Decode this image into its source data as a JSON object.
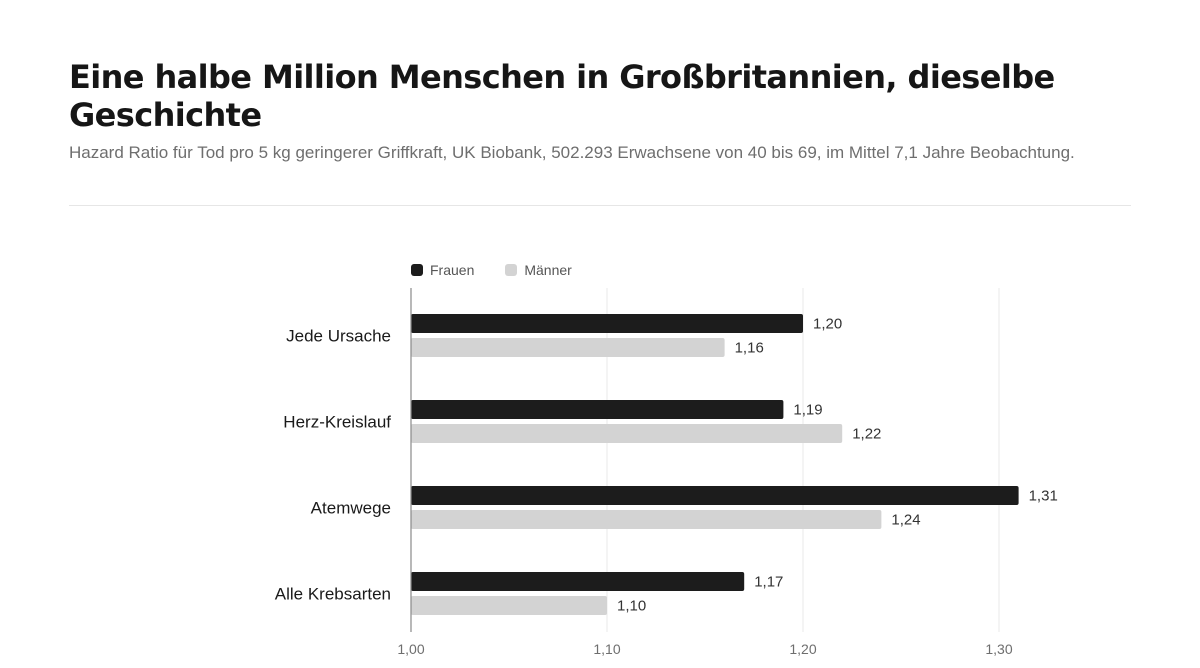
{
  "header": {
    "title": "Eine halbe Million Menschen in Großbritannien, dieselbe Geschichte",
    "subtitle": "Hazard Ratio für Tod pro 5 kg geringerer Griffkraft, UK Biobank, 502.293 Erwachsene von 40 bis 69, im Mittel 7,1 Jahre Beobachtung."
  },
  "chart_data": {
    "type": "bar",
    "orientation": "horizontal",
    "title": "Eine halbe Million Menschen in Großbritannien, dieselbe Geschichte",
    "subtitle": "Hazard Ratio für Tod pro 5 kg geringerer Griffkraft, UK Biobank, 502.293 Erwachsene von 40 bis 69, im Mittel 7,1 Jahre Beobachtung.",
    "xlabel": "",
    "ylabel": "",
    "categories": [
      "Jede Ursache",
      "Herz-Kreislauf",
      "Atemwege",
      "Alle Krebsarten"
    ],
    "series": [
      {
        "name": "Frauen",
        "color": "#1c1c1c",
        "values": [
          1.2,
          1.19,
          1.31,
          1.17
        ],
        "labels": [
          "1,20",
          "1,19",
          "1,31",
          "1,17"
        ]
      },
      {
        "name": "Männer",
        "color": "#d3d3d3",
        "values": [
          1.16,
          1.22,
          1.24,
          1.1
        ],
        "labels": [
          "1,16",
          "1,22",
          "1,24",
          "1,10"
        ]
      }
    ],
    "xlim": [
      1.0,
      1.35
    ],
    "ticks": [
      1.0,
      1.1,
      1.2,
      1.3
    ],
    "tick_labels": [
      "1,00",
      "1,10",
      "1,20",
      "1,30"
    ],
    "grid": true,
    "legend_position": "top-left"
  }
}
